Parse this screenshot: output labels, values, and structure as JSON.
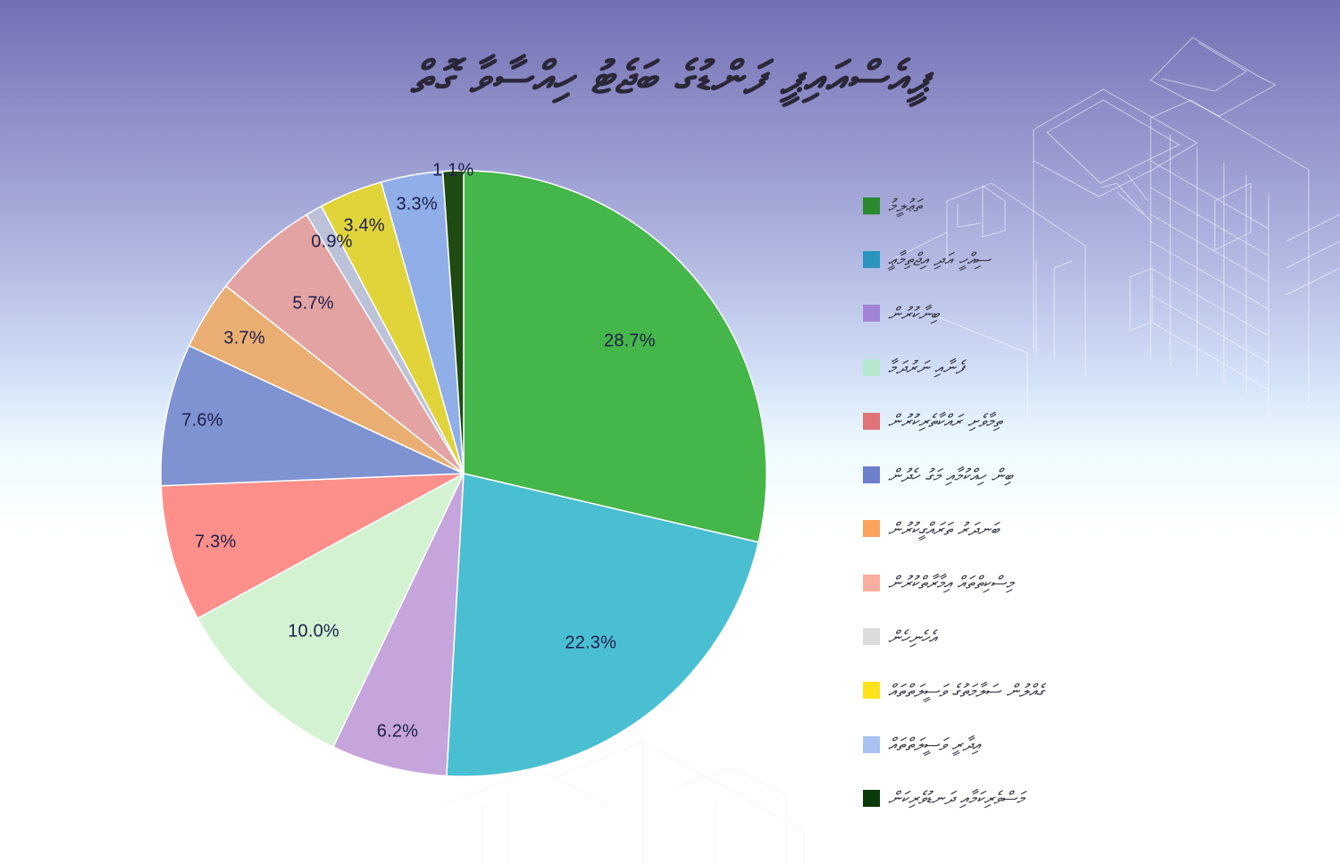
{
  "title": "ޕީއެސްއައިޕީ ފަންޑުގެ ބަޖެޓު ހިއްސާވާ ގޮތް",
  "colors": {
    "background_top": "#736fb4",
    "background_bottom": "#ffffff",
    "label_text": "#1d1f4a"
  },
  "chart_data": {
    "type": "pie",
    "title": "ޕީއެސްއައިޕީ ފަންޑުގެ ބަޖެޓު ހިއްސާވާ ގޮތް",
    "start_angle": "12 o'clock, clockwise",
    "legend_position": "right",
    "categories": [
      "ތަޢުލީމު",
      "ސިއްހީ އަދި އިޖްތިމާޢީ",
      "ބިނާކުރުން",
      "ފެނާއި ނަރުދަމާ",
      "ތިމާވެށި ރައްކާތެރިކުރުން",
      "ބިން ހިއްކުމާއި މަގު ހެދުން",
      "ބަނދަރު ތަރައްގީކުރުން",
      "މިސްކިތްތައް އިމާރާތްކުރުން",
      "އެހެނިހެން",
      "ގެއްލުން ސަލާމަތުގެ ވަސީލަތްތައް",
      "އިދާރީ ވަސީލަތްތައް",
      "މަސްވެރިކަމާއި ދަނޑުވެރިކަން"
    ],
    "values": [
      28.7,
      22.3,
      6.2,
      10.0,
      7.3,
      7.6,
      3.7,
      5.7,
      0.9,
      3.4,
      3.3,
      1.1
    ],
    "labels": [
      "28.7%",
      "22.3%",
      "6.2%",
      "10.0%",
      "7.3%",
      "7.6%",
      "3.7%",
      "5.7%",
      "0.9%",
      "3.4%",
      "3.3%",
      "1.1%"
    ],
    "slice_colors": [
      "#45b649",
      "#4bbfd2",
      "#c6a4dc",
      "#d3f2d2",
      "#fe8f8a",
      "#7f92d2",
      "#eaae72",
      "#e3a3a3",
      "#bcc3d8",
      "#e0d43a",
      "#90aee8",
      "#1f4a12"
    ],
    "legend_colors": [
      "#2a8a2e",
      "#2a95c0",
      "#a284d6",
      "#b5e8cf",
      "#e07478",
      "#6d7fcc",
      "#fba35c",
      "#f9aea0",
      "#dcdcdc",
      "#ffe21a",
      "#a9c2f2",
      "#0b3a0a"
    ]
  },
  "legend": {
    "items": [
      {
        "label": "ތަޢުލީމު",
        "color": "#2a8a2e"
      },
      {
        "label": "ސިއްހީ އަދި އިޖްތިމާޢީ",
        "color": "#2a95c0"
      },
      {
        "label": "ބިނާކުރުން",
        "color": "#a284d6"
      },
      {
        "label": "ފެނާއި ނަރުދަމާ",
        "color": "#b5e8cf"
      },
      {
        "label": "ތިމާވެށި ރައްކާތެރިކުރުން",
        "color": "#e07478"
      },
      {
        "label": "ބިން ހިއްކުމާއި މަގު ހެދުން",
        "color": "#6d7fcc"
      },
      {
        "label": "ބަނދަރު ތަރައްގީކުރުން",
        "color": "#fba35c"
      },
      {
        "label": "މިސްކިތްތައް އިމާރާތްކުރުން",
        "color": "#f9aea0"
      },
      {
        "label": "އެހެނިހެން",
        "color": "#dcdcdc"
      },
      {
        "label": "ގެއްލުން ސަލާމަތުގެ ވަސީލަތްތައް",
        "color": "#ffe21a"
      },
      {
        "label": "އިދާރީ ވަސީލަތްތައް",
        "color": "#a9c2f2"
      },
      {
        "label": "މަސްވެރިކަމާއި ދަނޑުވެރިކަން",
        "color": "#0b3a0a"
      }
    ]
  }
}
